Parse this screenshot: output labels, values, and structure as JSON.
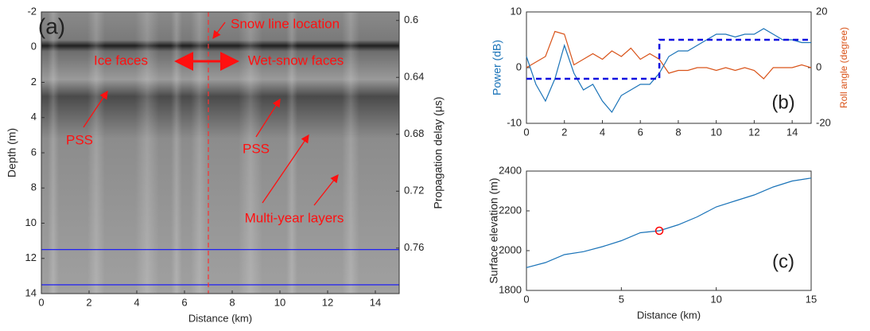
{
  "chart_data": [
    {
      "type": "image",
      "panel_label": "(a)",
      "annotations": [
        "Snow line location",
        "Ice faces",
        "Wet-snow faces",
        "PSS",
        "PSS",
        "Multi-year layers"
      ],
      "annotation_color": "#ff1010",
      "xlabel": "Distance (km)",
      "ylabel": "Depth (m)",
      "y2label": "Propagation delay (μs)",
      "xlim": [
        0,
        15
      ],
      "xticks": [
        0,
        2,
        4,
        6,
        8,
        10,
        12,
        14
      ],
      "ylim": [
        14,
        -2
      ],
      "yticks": [
        -2,
        0,
        2,
        4,
        6,
        8,
        10,
        12,
        14
      ],
      "y2lim": [
        0.792,
        0.594
      ],
      "y2ticks": [
        0.6,
        0.64,
        0.68,
        0.72,
        0.76
      ],
      "vlines": [
        7
      ],
      "vline_color": "#ff3030",
      "hlines": [
        11.5,
        13.5
      ],
      "hline_color": "#1010ff"
    },
    {
      "type": "line",
      "panel_label": "(b)",
      "ylabel": "Power (dB)",
      "ylabel_color": "#1a73b8",
      "y2label": "Roll angle (degree)",
      "y2label_color": "#d95319",
      "xlim": [
        0,
        15
      ],
      "xticks": [
        0,
        2,
        4,
        6,
        8,
        10,
        12,
        14
      ],
      "ylim": [
        -10,
        10
      ],
      "yticks": [
        -10,
        0,
        10
      ],
      "y2lim": [
        -20,
        20
      ],
      "y2ticks": [
        -20,
        0,
        20
      ],
      "series": [
        {
          "color": "#d95319",
          "axis": "y2",
          "x": [
            0,
            0.5,
            1,
            1.5,
            2,
            2.5,
            3,
            3.5,
            4,
            4.5,
            5,
            5.5,
            6,
            6.5,
            7,
            7.5,
            8,
            8.5,
            9,
            9.5,
            10,
            10.5,
            11,
            11.5,
            12,
            12.5,
            13,
            13.5,
            14,
            14.5,
            15
          ],
          "values": [
            0,
            2,
            4,
            13,
            12,
            1,
            3,
            5,
            3,
            6,
            4,
            7,
            3,
            5,
            3,
            -2,
            -1,
            -1,
            0,
            0,
            -1,
            0,
            -1,
            0,
            -1,
            -4,
            0,
            0,
            0,
            1,
            0
          ]
        },
        {
          "color": "#1a73b8",
          "x": [
            0,
            0.5,
            1,
            1.5,
            2,
            2.5,
            3,
            3.5,
            4,
            4.5,
            5,
            5.5,
            6,
            6.5,
            7,
            7.5,
            8,
            8.5,
            9,
            9.5,
            10,
            10.5,
            11,
            11.5,
            12,
            12.5,
            13,
            13.5,
            14,
            14.5,
            15
          ],
          "values": [
            2,
            -3,
            -6,
            -2,
            4,
            -1,
            -4,
            -3,
            -6,
            -8,
            -5,
            -4,
            -3,
            -3,
            -1,
            2,
            3,
            3,
            4,
            5,
            6,
            6,
            5.5,
            6,
            6,
            7,
            6,
            5,
            5,
            4.5,
            4.5
          ]
        },
        {
          "color": "#1010e0",
          "linestyle": "dashed",
          "x": [
            0,
            7,
            7,
            15
          ],
          "values": [
            -2,
            -2,
            5,
            5
          ]
        }
      ]
    },
    {
      "type": "line",
      "panel_label": "(c)",
      "xlabel": "Distance (km)",
      "ylabel": "Surface elevation (m)",
      "xlim": [
        0,
        15
      ],
      "xticks": [
        0,
        5,
        10,
        15
      ],
      "ylim": [
        1800,
        2400
      ],
      "yticks": [
        1800,
        2000,
        2200,
        2400
      ],
      "series": [
        {
          "color": "#1a73b8",
          "x": [
            0,
            1,
            2,
            3,
            4,
            5,
            6,
            7,
            8,
            9,
            10,
            11,
            12,
            13,
            14,
            15
          ],
          "values": [
            1915,
            1940,
            1980,
            1995,
            2020,
            2050,
            2090,
            2100,
            2130,
            2170,
            2220,
            2250,
            2280,
            2320,
            2350,
            2365
          ]
        }
      ],
      "markers": [
        {
          "x": 7,
          "y": 2100,
          "color": "#ff0000"
        }
      ]
    }
  ]
}
